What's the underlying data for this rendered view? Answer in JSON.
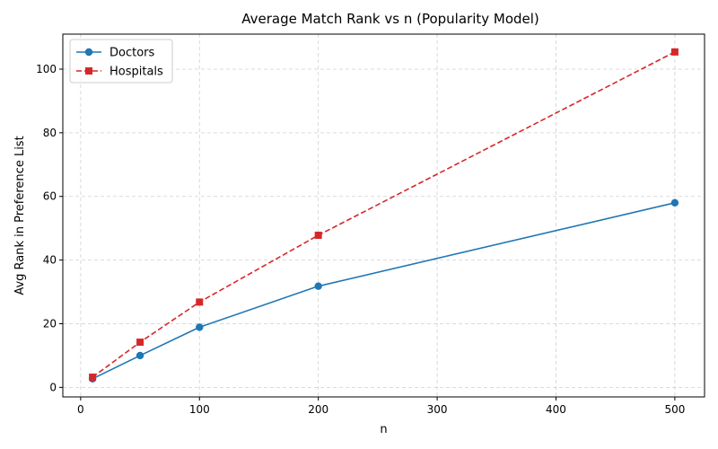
{
  "chart_data": {
    "type": "line",
    "title": "Average Match Rank vs n (Popularity Model)",
    "xlabel": "n",
    "ylabel": "Avg Rank in Preference List",
    "xlim": [
      -15,
      525
    ],
    "ylim": [
      -3,
      111
    ],
    "xticks": [
      0,
      100,
      200,
      300,
      400,
      500
    ],
    "yticks": [
      0,
      20,
      40,
      60,
      80,
      100
    ],
    "grid": true,
    "legend_position": "top-left",
    "series": [
      {
        "name": "Doctors",
        "color": "#1f77b4",
        "marker": "circle",
        "linestyle": "solid",
        "x": [
          10,
          50,
          100,
          200,
          500
        ],
        "y": [
          2.7,
          10.0,
          18.9,
          31.8,
          58.0
        ]
      },
      {
        "name": "Hospitals",
        "color": "#d62728",
        "marker": "square",
        "linestyle": "dashed",
        "x": [
          10,
          50,
          100,
          200,
          500
        ],
        "y": [
          3.2,
          14.2,
          26.8,
          47.8,
          105.4
        ]
      }
    ]
  }
}
